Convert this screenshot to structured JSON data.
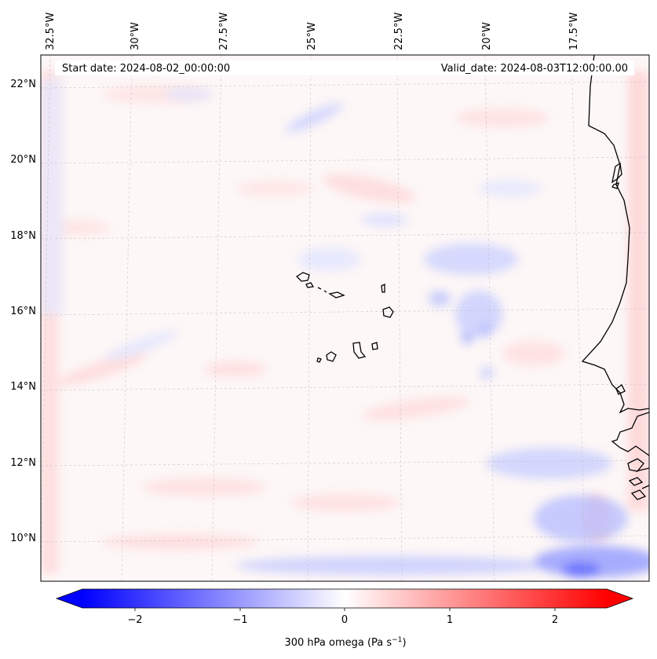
{
  "header": {
    "start_date": "Start date: 2024-08-02_00:00:00",
    "valid_date": "Valid_date: 2024-08-03T12:00:00.00"
  },
  "axes": {
    "lon_ticks": [
      "32.5°W",
      "30°W",
      "27.5°W",
      "25°W",
      "22.5°W",
      "20°W",
      "17.5°W"
    ],
    "lat_ticks": [
      "22°N",
      "20°N",
      "18°N",
      "16°N",
      "14°N",
      "12°N",
      "10°N"
    ]
  },
  "colorbar": {
    "ticks": [
      "−2",
      "−1",
      "0",
      "1",
      "2"
    ],
    "label_main": "300 hPa omega (Pa s",
    "label_sup": "−1",
    "label_close": ")",
    "range": [
      -2.5,
      2.5
    ],
    "colormap": "bwr",
    "neg_color": "#0000ff",
    "zero_color": "#ffffff",
    "pos_color": "#ff0000",
    "extend": "both"
  },
  "map": {
    "coastline_color": "#000000",
    "grid": true,
    "gridline_style": "dashed"
  }
}
